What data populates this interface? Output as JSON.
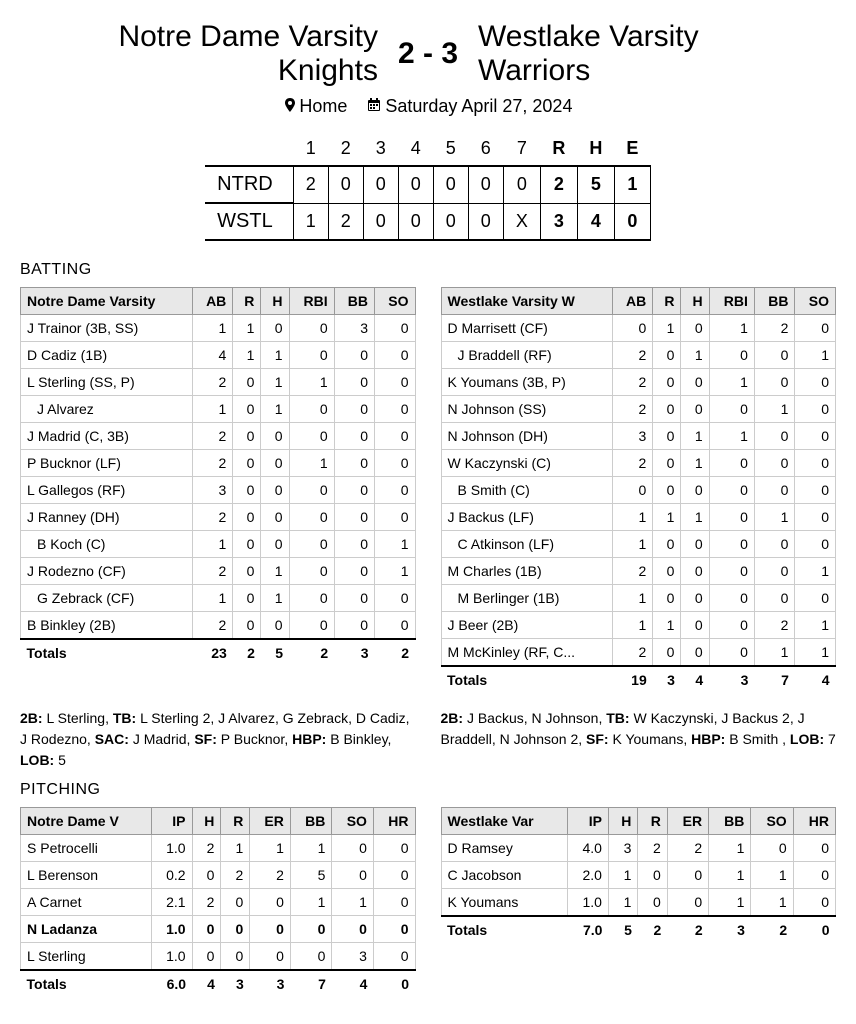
{
  "header": {
    "away_team": "Notre Dame Varsity Knights",
    "home_team": "Westlake Varsity Warriors",
    "away_score": "2",
    "home_score": "3",
    "location_label": "Home",
    "date_label": "Saturday April 27, 2024"
  },
  "linescore": {
    "innings": [
      "1",
      "2",
      "3",
      "4",
      "5",
      "6",
      "7"
    ],
    "summary_cols": [
      "R",
      "H",
      "E"
    ],
    "away_code": "NTRD",
    "home_code": "WSTL",
    "away_line": [
      "2",
      "0",
      "0",
      "0",
      "0",
      "0",
      "0"
    ],
    "home_line": [
      "1",
      "2",
      "0",
      "0",
      "0",
      "0",
      "X"
    ],
    "away_rhe": [
      "2",
      "5",
      "1"
    ],
    "home_rhe": [
      "3",
      "4",
      "0"
    ]
  },
  "batting_section_title": "BATTING",
  "pitching_section_title": "PITCHING",
  "batting": {
    "away_team_header": "Notre Dame Varsity",
    "home_team_header": "Westlake Varsity W",
    "cols": [
      "AB",
      "R",
      "H",
      "RBI",
      "BB",
      "SO"
    ],
    "away_rows": [
      {
        "name": "J Trainor (3B, SS)",
        "indent": false,
        "v": [
          "1",
          "1",
          "0",
          "0",
          "3",
          "0"
        ]
      },
      {
        "name": "D Cadiz (1B)",
        "indent": false,
        "v": [
          "4",
          "1",
          "1",
          "0",
          "0",
          "0"
        ]
      },
      {
        "name": "L Sterling (SS, P)",
        "indent": false,
        "v": [
          "2",
          "0",
          "1",
          "1",
          "0",
          "0"
        ]
      },
      {
        "name": "J Alvarez",
        "indent": true,
        "v": [
          "1",
          "0",
          "1",
          "0",
          "0",
          "0"
        ]
      },
      {
        "name": "J Madrid (C, 3B)",
        "indent": false,
        "v": [
          "2",
          "0",
          "0",
          "0",
          "0",
          "0"
        ]
      },
      {
        "name": "P Bucknor (LF)",
        "indent": false,
        "v": [
          "2",
          "0",
          "0",
          "1",
          "0",
          "0"
        ]
      },
      {
        "name": "L Gallegos (RF)",
        "indent": false,
        "v": [
          "3",
          "0",
          "0",
          "0",
          "0",
          "0"
        ]
      },
      {
        "name": "J Ranney (DH)",
        "indent": false,
        "v": [
          "2",
          "0",
          "0",
          "0",
          "0",
          "0"
        ]
      },
      {
        "name": "B Koch (C)",
        "indent": true,
        "v": [
          "1",
          "0",
          "0",
          "0",
          "0",
          "1"
        ]
      },
      {
        "name": "J Rodezno (CF)",
        "indent": false,
        "v": [
          "2",
          "0",
          "1",
          "0",
          "0",
          "1"
        ]
      },
      {
        "name": "G Zebrack (CF)",
        "indent": true,
        "v": [
          "1",
          "0",
          "1",
          "0",
          "0",
          "0"
        ]
      },
      {
        "name": "B Binkley (2B)",
        "indent": false,
        "v": [
          "2",
          "0",
          "0",
          "0",
          "0",
          "0"
        ]
      }
    ],
    "away_totals": {
      "label": "Totals",
      "v": [
        "23",
        "2",
        "5",
        "2",
        "3",
        "2"
      ]
    },
    "home_rows": [
      {
        "name": "D Marrisett (CF)",
        "indent": false,
        "v": [
          "0",
          "1",
          "0",
          "1",
          "2",
          "0"
        ]
      },
      {
        "name": "J Braddell (RF)",
        "indent": true,
        "v": [
          "2",
          "0",
          "1",
          "0",
          "0",
          "1"
        ]
      },
      {
        "name": "K Youmans (3B, P)",
        "indent": false,
        "v": [
          "2",
          "0",
          "0",
          "1",
          "0",
          "0"
        ]
      },
      {
        "name": "N Johnson (SS)",
        "indent": false,
        "v": [
          "2",
          "0",
          "0",
          "0",
          "1",
          "0"
        ]
      },
      {
        "name": "N Johnson (DH)",
        "indent": false,
        "v": [
          "3",
          "0",
          "1",
          "1",
          "0",
          "0"
        ]
      },
      {
        "name": "W Kaczynski (C)",
        "indent": false,
        "v": [
          "2",
          "0",
          "1",
          "0",
          "0",
          "0"
        ]
      },
      {
        "name": "B Smith  (C)",
        "indent": true,
        "v": [
          "0",
          "0",
          "0",
          "0",
          "0",
          "0"
        ]
      },
      {
        "name": "J Backus (LF)",
        "indent": false,
        "v": [
          "1",
          "1",
          "1",
          "0",
          "1",
          "0"
        ]
      },
      {
        "name": "C Atkinson (LF)",
        "indent": true,
        "v": [
          "1",
          "0",
          "0",
          "0",
          "0",
          "0"
        ]
      },
      {
        "name": "M Charles (1B)",
        "indent": false,
        "v": [
          "2",
          "0",
          "0",
          "0",
          "0",
          "1"
        ]
      },
      {
        "name": "M Berlinger (1B)",
        "indent": true,
        "v": [
          "1",
          "0",
          "0",
          "0",
          "0",
          "0"
        ]
      },
      {
        "name": "J Beer (2B)",
        "indent": false,
        "v": [
          "1",
          "1",
          "0",
          "0",
          "2",
          "1"
        ]
      },
      {
        "name": "M McKinley (RF, C...",
        "indent": false,
        "v": [
          "2",
          "0",
          "0",
          "0",
          "1",
          "1"
        ]
      }
    ],
    "home_totals": {
      "label": "Totals",
      "v": [
        "19",
        "3",
        "4",
        "3",
        "7",
        "4"
      ]
    }
  },
  "batting_notes": {
    "away": [
      {
        "label": "2B:",
        "text": " L Sterling, "
      },
      {
        "label": "TB:",
        "text": " L Sterling 2, J Alvarez, G Zebrack, D Cadiz, J Rodezno, "
      },
      {
        "label": "SAC:",
        "text": " J Madrid, "
      },
      {
        "label": "SF:",
        "text": " P Bucknor, "
      },
      {
        "label": "HBP:",
        "text": " B Binkley, "
      },
      {
        "label": "LOB:",
        "text": " 5"
      }
    ],
    "home": [
      {
        "label": "2B:",
        "text": " J Backus, N Johnson, "
      },
      {
        "label": "TB:",
        "text": " W Kaczynski, J Backus 2, J Braddell, N Johnson 2, "
      },
      {
        "label": "SF:",
        "text": " K Youmans, "
      },
      {
        "label": "HBP:",
        "text": " B Smith , "
      },
      {
        "label": "LOB:",
        "text": " 7"
      }
    ]
  },
  "pitching": {
    "away_team_header": "Notre Dame V",
    "home_team_header": "Westlake Var",
    "cols": [
      "IP",
      "H",
      "R",
      "ER",
      "BB",
      "SO",
      "HR"
    ],
    "away_rows": [
      {
        "name": "S Petrocelli",
        "bold": false,
        "v": [
          "1.0",
          "2",
          "1",
          "1",
          "1",
          "0",
          "0"
        ]
      },
      {
        "name": "L Berenson",
        "bold": false,
        "v": [
          "0.2",
          "0",
          "2",
          "2",
          "5",
          "0",
          "0"
        ]
      },
      {
        "name": "A Carnet",
        "bold": false,
        "v": [
          "2.1",
          "2",
          "0",
          "0",
          "1",
          "1",
          "0"
        ]
      },
      {
        "name": "N Ladanza",
        "bold": true,
        "v": [
          "1.0",
          "0",
          "0",
          "0",
          "0",
          "0",
          "0"
        ]
      },
      {
        "name": "L Sterling",
        "bold": false,
        "v": [
          "1.0",
          "0",
          "0",
          "0",
          "0",
          "3",
          "0"
        ]
      }
    ],
    "away_totals": {
      "label": "Totals",
      "v": [
        "6.0",
        "4",
        "3",
        "3",
        "7",
        "4",
        "0"
      ]
    },
    "home_rows": [
      {
        "name": "D Ramsey",
        "bold": false,
        "v": [
          "4.0",
          "3",
          "2",
          "2",
          "1",
          "0",
          "0"
        ]
      },
      {
        "name": "C Jacobson",
        "bold": false,
        "v": [
          "2.0",
          "1",
          "0",
          "0",
          "1",
          "1",
          "0"
        ]
      },
      {
        "name": "K Youmans",
        "bold": false,
        "v": [
          "1.0",
          "1",
          "0",
          "0",
          "1",
          "1",
          "0"
        ]
      }
    ],
    "home_totals": {
      "label": "Totals",
      "v": [
        "7.0",
        "5",
        "2",
        "2",
        "3",
        "2",
        "0"
      ]
    }
  }
}
